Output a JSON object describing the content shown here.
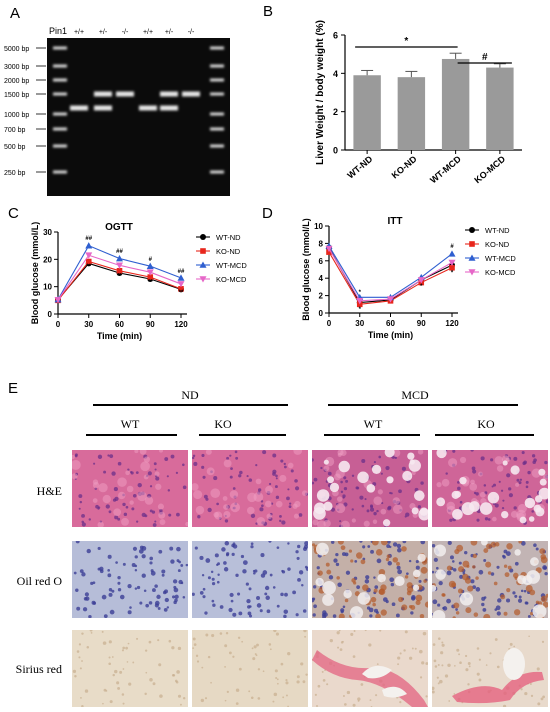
{
  "panels": {
    "a": "A",
    "b": "B",
    "c": "C",
    "d": "D",
    "e": "E"
  },
  "gel": {
    "lane_header": "Pin1",
    "lanes": [
      "+/+",
      "+/-",
      "-/-",
      "+/+",
      "+/-",
      "-/-"
    ],
    "ladder": [
      "5000 bp",
      "3000 bp",
      "2000 bp",
      "1500 bp",
      "1000 bp",
      "700 bp",
      "500 bp",
      "250 bp"
    ]
  },
  "chart_data": [
    {
      "id": "B",
      "type": "bar",
      "categories": [
        "WT-ND",
        "KO-ND",
        "WT-MCD",
        "KO-MCD"
      ],
      "values": [
        3.9,
        3.8,
        4.75,
        4.3
      ],
      "errors": [
        0.25,
        0.3,
        0.3,
        0.2
      ],
      "ylabel": "Liver Weight / body weight (%)",
      "ylim": [
        0,
        6
      ],
      "yticks": [
        "0",
        "2",
        "4",
        "6"
      ],
      "bar_color": "#9a9a9a",
      "annotations": [
        {
          "from": "WT-ND",
          "to": "WT-MCD",
          "text": "*"
        },
        {
          "from": "WT-MCD",
          "to": "KO-MCD",
          "text": "#"
        }
      ]
    },
    {
      "id": "C",
      "type": "line",
      "title": "OGTT",
      "x": [
        0,
        30,
        60,
        90,
        120
      ],
      "xticks": [
        "0",
        "30",
        "60",
        "90",
        "120"
      ],
      "xlabel": "Time (min)",
      "ylabel": "Blood glucose (mmol/L)",
      "ylim": [
        0,
        30
      ],
      "yticks": [
        "0",
        "10",
        "20",
        "30"
      ],
      "series": [
        {
          "name": "WT-ND",
          "color": "#000000",
          "marker": "circle",
          "values": [
            5.2,
            18.5,
            15.0,
            12.8,
            9.0
          ]
        },
        {
          "name": "KO-ND",
          "color": "#e8261c",
          "marker": "square",
          "values": [
            5.0,
            19.2,
            15.8,
            13.5,
            9.2
          ]
        },
        {
          "name": "WT-MCD",
          "color": "#2f5fd0",
          "marker": "triangle",
          "values": [
            5.3,
            25.0,
            20.3,
            17.5,
            13.2
          ]
        },
        {
          "name": "KO-MCD",
          "color": "#e667c8",
          "marker": "triangle-down",
          "values": [
            5.2,
            21.5,
            17.8,
            15.3,
            11.0
          ]
        }
      ],
      "annotations": [
        {
          "x": 30,
          "y": 27.0,
          "text": "##"
        },
        {
          "x": 30,
          "y": 16.8,
          "text": "**"
        },
        {
          "x": 60,
          "y": 22.3,
          "text": "##"
        },
        {
          "x": 60,
          "y": 13.3,
          "text": "**"
        },
        {
          "x": 90,
          "y": 19.3,
          "text": "#"
        },
        {
          "x": 90,
          "y": 11.1,
          "text": "**"
        },
        {
          "x": 120,
          "y": 15.0,
          "text": "##"
        },
        {
          "x": 120,
          "y": 7.3,
          "text": "**"
        }
      ]
    },
    {
      "id": "D",
      "type": "line",
      "title": "ITT",
      "x": [
        0,
        30,
        60,
        90,
        120
      ],
      "xticks": [
        "0",
        "30",
        "60",
        "90",
        "120"
      ],
      "xlabel": "Time (min)",
      "ylabel": "Blood glucose (mmol/L)",
      "ylim": [
        0,
        10
      ],
      "yticks": [
        "0",
        "2",
        "4",
        "6",
        "8",
        "10"
      ],
      "series": [
        {
          "name": "WT-ND",
          "color": "#000000",
          "marker": "circle",
          "values": [
            7.5,
            1.2,
            1.5,
            3.8,
            5.5
          ]
        },
        {
          "name": "KO-ND",
          "color": "#e8261c",
          "marker": "square",
          "values": [
            7.0,
            1.0,
            1.4,
            3.5,
            5.2
          ]
        },
        {
          "name": "WT-MCD",
          "color": "#2f5fd0",
          "marker": "triangle",
          "values": [
            7.7,
            1.8,
            1.8,
            4.1,
            6.8
          ]
        },
        {
          "name": "KO-MCD",
          "color": "#e667c8",
          "marker": "triangle-down",
          "values": [
            7.4,
            1.4,
            1.6,
            3.8,
            5.8
          ]
        }
      ],
      "annotations": [
        {
          "x": 30,
          "y": 2.2,
          "text": "*"
        },
        {
          "x": 30,
          "y": 0.25,
          "text": "*"
        },
        {
          "x": 90,
          "y": 2.9,
          "text": "*"
        },
        {
          "x": 120,
          "y": 7.5,
          "text": "#"
        },
        {
          "x": 120,
          "y": 4.4,
          "text": "*"
        }
      ]
    }
  ],
  "histology": {
    "groups": [
      "ND",
      "MCD"
    ],
    "columns": [
      "WT",
      "KO",
      "WT",
      "KO"
    ],
    "rows": [
      "H&E",
      "Oil red O",
      "Sirius red"
    ]
  }
}
